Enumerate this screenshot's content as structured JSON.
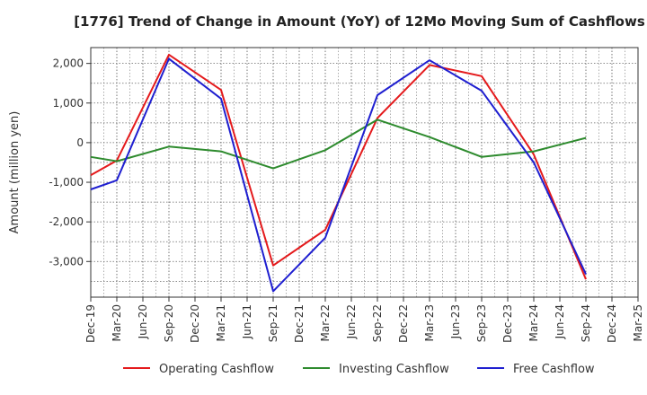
{
  "chart_data": {
    "type": "line",
    "title": "[1776]  Trend of Change in Amount (YoY) of 12Mo Moving Sum of Cashflows",
    "xlabel": "",
    "ylabel": "Amount (million yen)",
    "ylim": [
      -3900,
      2400
    ],
    "yticks": [
      2000,
      1000,
      0,
      -1000,
      -2000,
      -3000
    ],
    "ytick_labels": [
      "2,000",
      "1,000",
      "0",
      "-1,000",
      "-2,000",
      "-3,000"
    ],
    "categories": [
      "Dec-19",
      "Mar-20",
      "Jun-20",
      "Sep-20",
      "Dec-20",
      "Mar-21",
      "Jun-21",
      "Sep-21",
      "Dec-21",
      "Mar-22",
      "Jun-22",
      "Sep-22",
      "Dec-22",
      "Mar-23",
      "Jun-23",
      "Sep-23",
      "Dec-23",
      "Mar-24",
      "Jun-24",
      "Sep-24",
      "Dec-24",
      "Mar-25"
    ],
    "grid": true,
    "legend_position": "bottom",
    "series": [
      {
        "name": "Operating Cashflow",
        "color": "#e41a1c",
        "values": [
          -820,
          -450,
          null,
          2220,
          null,
          1330,
          null,
          -3100,
          null,
          -2200,
          null,
          620,
          null,
          1960,
          null,
          1680,
          null,
          -300,
          null,
          -3450,
          null,
          null
        ]
      },
      {
        "name": "Investing Cashflow",
        "color": "#2e8b2e",
        "values": [
          -360,
          -470,
          null,
          -100,
          null,
          -220,
          null,
          -650,
          null,
          -190,
          null,
          580,
          null,
          140,
          null,
          -360,
          null,
          -220,
          null,
          120,
          null,
          null
        ]
      },
      {
        "name": "Free Cashflow",
        "color": "#1f1fd0",
        "values": [
          -1180,
          -950,
          null,
          2120,
          null,
          1110,
          null,
          -3750,
          null,
          -2400,
          null,
          1200,
          null,
          2080,
          null,
          1310,
          null,
          -500,
          null,
          -3320,
          null,
          null
        ]
      }
    ]
  }
}
